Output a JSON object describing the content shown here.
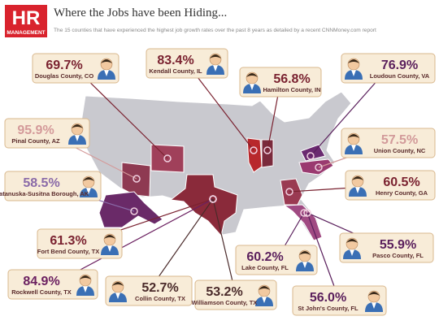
{
  "logo": {
    "mark": "HR",
    "text": "MANAGEMENT"
  },
  "header": {
    "title": "Where the Jobs have been Hiding...",
    "subtitle": "The 15 counties that have experienced the highest job growth rates over the past 8 years as detailed by a recent CNNMoney.com report"
  },
  "callouts": [
    {
      "percent": "69.7%",
      "county": "Douglas County, CO"
    },
    {
      "percent": "83.4%",
      "county": "Kendall County, IL"
    },
    {
      "percent": "56.8%",
      "county": "Hamilton County, IN"
    },
    {
      "percent": "76.9%",
      "county": "Loudoun County, VA"
    },
    {
      "percent": "95.9%",
      "county": "Pinal County, AZ"
    },
    {
      "percent": "57.5%",
      "county": "Union County, NC"
    },
    {
      "percent": "58.5%",
      "county": "Matanuska-Susitna Borough, AK"
    },
    {
      "percent": "60.5%",
      "county": "Henry County, GA"
    },
    {
      "percent": "61.3%",
      "county": "Fort Bend County, TX"
    },
    {
      "percent": "60.2%",
      "county": "Lake County, FL"
    },
    {
      "percent": "55.9%",
      "county": "Pasco County, FL"
    },
    {
      "percent": "84.9%",
      "county": "Rockwell County, TX"
    },
    {
      "percent": "52.7%",
      "county": "Collin County, TX"
    },
    {
      "percent": "53.2%",
      "county": "Williamson County, TX"
    },
    {
      "percent": "56.0%",
      "county": "St John's County, FL"
    }
  ]
}
